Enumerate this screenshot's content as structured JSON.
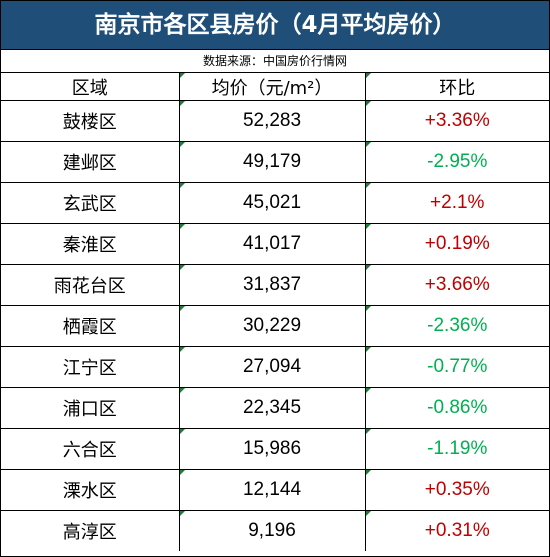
{
  "title": "南京市各区县房价（4月平均房价）",
  "source": "数据来源：中国房价行情网",
  "columns": [
    "区域",
    "均价（元/m²）",
    "环比"
  ],
  "colors": {
    "header_bg": "#1f4e79",
    "up": "#c00000",
    "down": "#00b050"
  },
  "rows": [
    {
      "district": "鼓楼区",
      "price": "52,283",
      "change": "+3.36%",
      "trend": "up"
    },
    {
      "district": "建邺区",
      "price": "49,179",
      "change": "-2.95%",
      "trend": "down"
    },
    {
      "district": "玄武区",
      "price": "45,021",
      "change": "+2.1%",
      "trend": "up"
    },
    {
      "district": "秦淮区",
      "price": "41,017",
      "change": "+0.19%",
      "trend": "up"
    },
    {
      "district": "雨花台区",
      "price": "31,837",
      "change": "+3.66%",
      "trend": "up"
    },
    {
      "district": "栖霞区",
      "price": "30,229",
      "change": "-2.36%",
      "trend": "down"
    },
    {
      "district": "江宁区",
      "price": "27,094",
      "change": "-0.77%",
      "trend": "down"
    },
    {
      "district": "浦口区",
      "price": "22,345",
      "change": "-0.86%",
      "trend": "down"
    },
    {
      "district": "六合区",
      "price": "15,986",
      "change": "-1.19%",
      "trend": "down"
    },
    {
      "district": "溧水区",
      "price": "12,144",
      "change": "+0.35%",
      "trend": "up"
    },
    {
      "district": "高淳区",
      "price": "9,196",
      "change": "+0.31%",
      "trend": "up"
    }
  ]
}
